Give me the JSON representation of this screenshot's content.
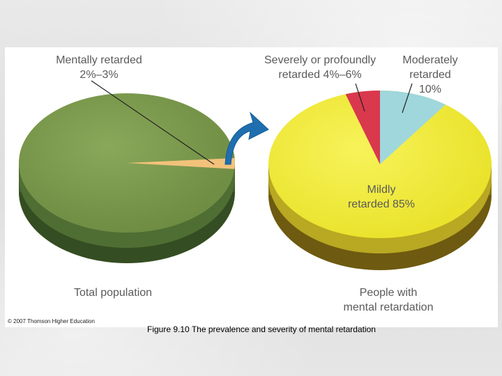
{
  "caption": "Figure 9.10 The prevalence and severity of mental retardation",
  "copyright": "© 2007 Thomson Higher Education",
  "colors": {
    "normal": "#7d9a4f",
    "mentally_retarded": "#f2c27b",
    "mild": "#f3ee3a",
    "moderate": "#9fd7dc",
    "severe": "#d9384d",
    "arrow": "#1f6fb0"
  },
  "chart_data": [
    {
      "type": "pie",
      "title": "Total population",
      "annotation": "Mentally retarded 2%–3%",
      "slices": [
        {
          "label": "Mentally retarded",
          "value_range": [
            2,
            3
          ],
          "value": 2.5,
          "color": "#f2c27b"
        },
        {
          "label": "",
          "value": 97.5,
          "color": "#7d9a4f"
        }
      ]
    },
    {
      "type": "pie",
      "title": "People with mental retardation",
      "slices": [
        {
          "label": "Severely or profoundly retarded 4%–6%",
          "value_range": [
            4,
            6
          ],
          "value": 5,
          "color": "#d9384d"
        },
        {
          "label": "Moderately retarded 10%",
          "value": 10,
          "color": "#9fd7dc"
        },
        {
          "label": "Mildly retarded 85%",
          "value": 85,
          "color": "#f3ee3a"
        }
      ]
    }
  ],
  "labels": {
    "left_annotation_line1": "Mentally retarded",
    "left_annotation_line2": "2%–3%",
    "left_title": "Total population",
    "severe_line1": "Severely or profoundly",
    "severe_line2": "retarded 4%–6%",
    "moderate_line1": "Moderately",
    "moderate_line2": "retarded",
    "moderate_line3": "10%",
    "mild_line1": "Mildly",
    "mild_line2": "retarded 85%",
    "right_title_line1": "People with",
    "right_title_line2": "mental retardation"
  }
}
